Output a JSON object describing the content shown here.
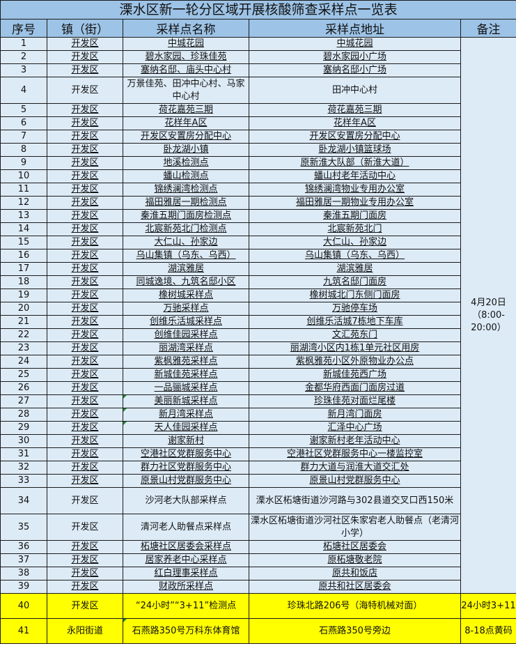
{
  "title": "溧水区新一轮分区域开展核酸筛查采样点一览表",
  "headers": [
    "序号",
    "镇（街）",
    "采样点名称",
    "采样点地址",
    "备注"
  ],
  "remark_main": "4月20日（8:00-20:00）",
  "colors": {
    "header_bg": "#9dc3e6",
    "cell_bg": "#ddebf7",
    "highlight_bg": "#ffff00"
  },
  "rows": [
    {
      "no": "1",
      "town": "开发区",
      "name": "中城花园",
      "addr": "中城花园"
    },
    {
      "no": "2",
      "town": "开发区",
      "name": "碧水家园、珍珠佳苑",
      "addr": "碧水家园小广场"
    },
    {
      "no": "3",
      "town": "开发区",
      "name": "塞纳名邸、庙头中心村",
      "addr": "塞纳名邸小广场"
    },
    {
      "no": "4",
      "town": "开发区",
      "name": "万景佳苑、田冲中心村、马家中心村",
      "addr": "田冲中心村"
    },
    {
      "no": "5",
      "town": "开发区",
      "name": "荷花嘉苑三期",
      "addr": "荷花嘉苑三期"
    },
    {
      "no": "6",
      "town": "开发区",
      "name": "花样年A区",
      "addr": "花样年A区"
    },
    {
      "no": "7",
      "town": "开发区",
      "name": "开发区安置房分配中心",
      "addr": "开发区安置房分配中心"
    },
    {
      "no": "8",
      "town": "开发区",
      "name": "卧龙湖小镇",
      "addr": "卧龙湖小镇篮球场"
    },
    {
      "no": "9",
      "town": "开发区",
      "name": "地溪检测点",
      "addr": "原新淮大队部（新淮大道）"
    },
    {
      "no": "10",
      "town": "开发区",
      "name": "蟠山检测点",
      "addr": "蟠山村老年活动中心"
    },
    {
      "no": "11",
      "town": "开发区",
      "name": "锦绣澜湾检测点",
      "addr": "锦绣澜湾物业专用办公室"
    },
    {
      "no": "12",
      "town": "开发区",
      "name": "福田雅居一期检测点",
      "addr": "福田雅居一期物业专用办公室"
    },
    {
      "no": "13",
      "town": "开发区",
      "name": "秦淮五期门面房检测点",
      "addr": "秦淮五期门面房"
    },
    {
      "no": "14",
      "town": "开发区",
      "name": "北宸新苑北门检测点",
      "addr": "北宸新苑北门"
    },
    {
      "no": "15",
      "town": "开发区",
      "name": "大仁山、孙家边",
      "addr": "大仁山、孙家边"
    },
    {
      "no": "16",
      "town": "开发区",
      "name": "乌山集镇（乌东、乌西）",
      "addr": "乌山集镇（乌东、乌西）"
    },
    {
      "no": "17",
      "town": "开发区",
      "name": "湖滨雅居",
      "addr": "湖滨雅居"
    },
    {
      "no": "18",
      "town": "开发区",
      "name": "同城逸境、九筑名邸小区",
      "addr": "九筑名邸门面房"
    },
    {
      "no": "19",
      "town": "开发区",
      "name": "橡树城采样点",
      "addr": "橡树城北门东侧门面房"
    },
    {
      "no": "20",
      "town": "开发区",
      "name": "万驰采样点",
      "addr": "万驰停车场"
    },
    {
      "no": "21",
      "town": "开发区",
      "name": "创维乐活城采样点",
      "addr": "创维乐活城7栋地下车库"
    },
    {
      "no": "22",
      "town": "开发区",
      "name": "创维佳园采样点",
      "addr": "文汇苑东门"
    },
    {
      "no": "23",
      "town": "开发区",
      "name": "丽湖湾采样点",
      "addr": "丽湖湾小区内1栋1单元社区用房"
    },
    {
      "no": "24",
      "town": "开发区",
      "name": "紫枫雅苑采样点",
      "addr": "紫枫雅苑小区外原物业办公点"
    },
    {
      "no": "25",
      "town": "开发区",
      "name": "新城佳苑采样点",
      "addr": "新城佳苑西广场"
    },
    {
      "no": "26",
      "town": "开发区",
      "name": "一品骊城采样点",
      "addr": "金都华府西面门面房过道"
    },
    {
      "no": "27",
      "town": "开发区",
      "name": "美丽新城采样点",
      "addr": "珍珠佳苑对面烂尾楼"
    },
    {
      "no": "28",
      "town": "开发区",
      "name": "新月湾采样点",
      "addr": "新月湾门面房"
    },
    {
      "no": "29",
      "town": "开发区",
      "name": "天人佳园采样点",
      "addr": "汇泽中心广场"
    },
    {
      "no": "30",
      "town": "开发区",
      "name": "谢家新村",
      "addr": "谢家新村老年活动中心"
    },
    {
      "no": "31",
      "town": "开发区",
      "name": "空港社区党群服务中心",
      "addr": "空港社区党群服务中心一楼监控室"
    },
    {
      "no": "32",
      "town": "开发区",
      "name": "群力社区党群服务中心",
      "addr": "群力大道与润淮大道交汇处"
    },
    {
      "no": "33",
      "town": "开发区",
      "name": "原景山村党群服务中心",
      "addr": "原景山村党群服务中心"
    },
    {
      "no": "34",
      "town": "开发区",
      "name": "沙河老大队部采样点",
      "addr": "溧水区柘塘街道沙河路与302县道交叉口西150米"
    },
    {
      "no": "35",
      "town": "开发区",
      "name": "清河老人助餐点采样点",
      "addr": "溧水区柘塘街道沙河社区朱家宕老人助餐点（老清河小学）"
    },
    {
      "no": "36",
      "town": "开发区",
      "name": "柘塘社区居委会采样点",
      "addr": "柘塘社区居委会"
    },
    {
      "no": "37",
      "town": "开发区",
      "name": "居家养老中心采样点",
      "addr": "原柘塘敬老院"
    },
    {
      "no": "38",
      "town": "开发区",
      "name": "红白理事采样点",
      "addr": "原共和饭店"
    },
    {
      "no": "39",
      "town": "开发区",
      "name": "财政所采样点",
      "addr": "原共和社区居委会"
    },
    {
      "no": "40",
      "town": "开发区",
      "name": "“24小时”“3+11”检测点",
      "addr": "珍珠北路206号（海特机械对面）",
      "remark": "24小时3+11"
    },
    {
      "no": "41",
      "town": "永阳街道",
      "name": "石燕路350号万科东体育馆",
      "addr": "石燕路350号旁边",
      "remark": "8-18点黄码"
    }
  ]
}
